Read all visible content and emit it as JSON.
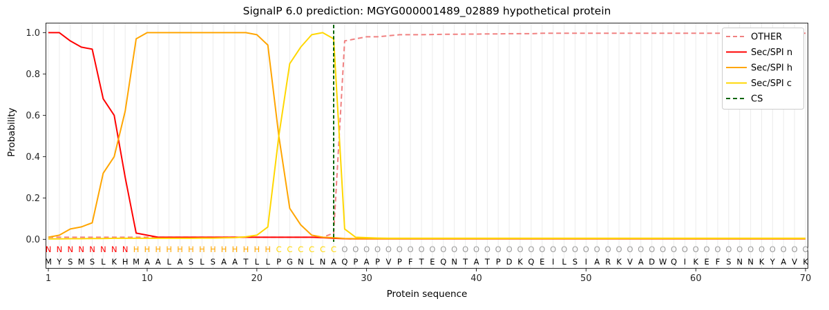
{
  "chart_data": {
    "type": "line",
    "title": "SignalP 6.0 prediction: MGYG000001489_02889 hypothetical protein",
    "xlabel": "Protein sequence",
    "ylabel": "Probability",
    "xlim": [
      1,
      70
    ],
    "ylim": [
      0.0,
      1.05
    ],
    "x_ticks": [
      1,
      10,
      20,
      30,
      40,
      50,
      60,
      70
    ],
    "y_ticks": [
      "0.0",
      "0.2",
      "0.4",
      "0.6",
      "0.8",
      "1.0"
    ],
    "grid": "light vertical gridline at every residue position",
    "legend_position": "upper right",
    "cs_position": 27,
    "sequence": "MYSMSLKHMAALASLSAATLLPGNLNAQPAPVPFTEQNTATPDKQEILSIARKVADWQIKEFSNNKYAVK",
    "region_segments": [
      {
        "letter": "N",
        "start": 1,
        "end": 8,
        "color": "#ff0000"
      },
      {
        "letter": "H",
        "start": 9,
        "end": 21,
        "color": "#ffa500"
      },
      {
        "letter": "C",
        "start": 22,
        "end": 27,
        "color": "#ffd700"
      },
      {
        "letter": "O",
        "start": 28,
        "end": 70,
        "color": "#999999"
      }
    ],
    "series": [
      {
        "name": "OTHER",
        "color": "#f08080",
        "dashed": true,
        "values": [
          0.01,
          0.01,
          0.01,
          0.01,
          0.01,
          0.01,
          0.01,
          0.01,
          0.01,
          0.01,
          0.01,
          0.01,
          0.01,
          0.01,
          0.01,
          0.01,
          0.01,
          0.01,
          0.01,
          0.01,
          0.01,
          0.01,
          0.01,
          0.01,
          0.01,
          0.01,
          0.03,
          0.96,
          0.97,
          0.98,
          0.98,
          0.985,
          0.99,
          0.99,
          0.99,
          0.991,
          0.992,
          0.992,
          0.993,
          0.993,
          0.994,
          0.994,
          0.995,
          0.995,
          0.995,
          0.997,
          0.997,
          0.997,
          0.997,
          0.997,
          0.997,
          0.997,
          0.997,
          0.997,
          0.997,
          0.997,
          0.997,
          0.997,
          0.997,
          0.997,
          0.997,
          0.997,
          0.997,
          0.997,
          0.997,
          0.997,
          0.997,
          0.997,
          0.997,
          0.997
        ]
      },
      {
        "name": "Sec/SPI n",
        "color": "#ff0000",
        "dashed": false,
        "values": [
          1.0,
          1.0,
          0.96,
          0.93,
          0.92,
          0.68,
          0.6,
          0.3,
          0.03,
          0.02,
          0.01,
          0.01,
          0.01,
          0.01,
          0.01,
          0.01,
          0.01,
          0.01,
          0.01,
          0.01,
          0.01,
          0.01,
          0.01,
          0.01,
          0.01,
          0.008,
          0.005,
          0.003,
          0.002,
          0.002,
          0.002,
          0.002,
          0.002,
          0.002,
          0.002,
          0.002,
          0.002,
          0.002,
          0.002,
          0.002,
          0.002,
          0.002,
          0.002,
          0.002,
          0.002,
          0.002,
          0.002,
          0.002,
          0.002,
          0.002,
          0.002,
          0.002,
          0.002,
          0.002,
          0.002,
          0.002,
          0.002,
          0.002,
          0.002,
          0.002,
          0.002,
          0.002,
          0.002,
          0.002,
          0.002,
          0.002,
          0.002,
          0.002,
          0.002,
          0.002
        ]
      },
      {
        "name": "Sec/SPI h",
        "color": "#ffa500",
        "dashed": false,
        "values": [
          0.01,
          0.02,
          0.05,
          0.06,
          0.08,
          0.32,
          0.4,
          0.62,
          0.97,
          1.0,
          1.0,
          1.0,
          1.0,
          1.0,
          1.0,
          1.0,
          1.0,
          1.0,
          1.0,
          0.99,
          0.94,
          0.5,
          0.15,
          0.07,
          0.02,
          0.01,
          0.008,
          0.004,
          0.003,
          0.003,
          0.003,
          0.003,
          0.003,
          0.003,
          0.003,
          0.003,
          0.003,
          0.003,
          0.003,
          0.003,
          0.003,
          0.003,
          0.003,
          0.003,
          0.003,
          0.003,
          0.003,
          0.003,
          0.003,
          0.003,
          0.003,
          0.003,
          0.003,
          0.003,
          0.003,
          0.003,
          0.003,
          0.003,
          0.003,
          0.003,
          0.003,
          0.003,
          0.003,
          0.003,
          0.003,
          0.003,
          0.003,
          0.003,
          0.003,
          0.003
        ]
      },
      {
        "name": "Sec/SPI c",
        "color": "#ffd700",
        "dashed": false,
        "values": [
          0.002,
          0.002,
          0.003,
          0.003,
          0.004,
          0.004,
          0.005,
          0.005,
          0.005,
          0.005,
          0.005,
          0.005,
          0.005,
          0.005,
          0.006,
          0.006,
          0.007,
          0.008,
          0.012,
          0.02,
          0.06,
          0.5,
          0.85,
          0.93,
          0.99,
          1.0,
          0.97,
          0.05,
          0.01,
          0.008,
          0.006,
          0.005,
          0.005,
          0.005,
          0.005,
          0.005,
          0.005,
          0.005,
          0.005,
          0.005,
          0.005,
          0.005,
          0.005,
          0.005,
          0.005,
          0.005,
          0.005,
          0.005,
          0.005,
          0.005,
          0.005,
          0.005,
          0.005,
          0.005,
          0.005,
          0.005,
          0.005,
          0.005,
          0.005,
          0.005,
          0.005,
          0.005,
          0.005,
          0.005,
          0.005,
          0.005,
          0.005,
          0.005,
          0.005,
          0.005
        ]
      },
      {
        "name": "CS",
        "color": "#006400",
        "dashed": true,
        "type": "vline",
        "x": 27
      }
    ]
  }
}
